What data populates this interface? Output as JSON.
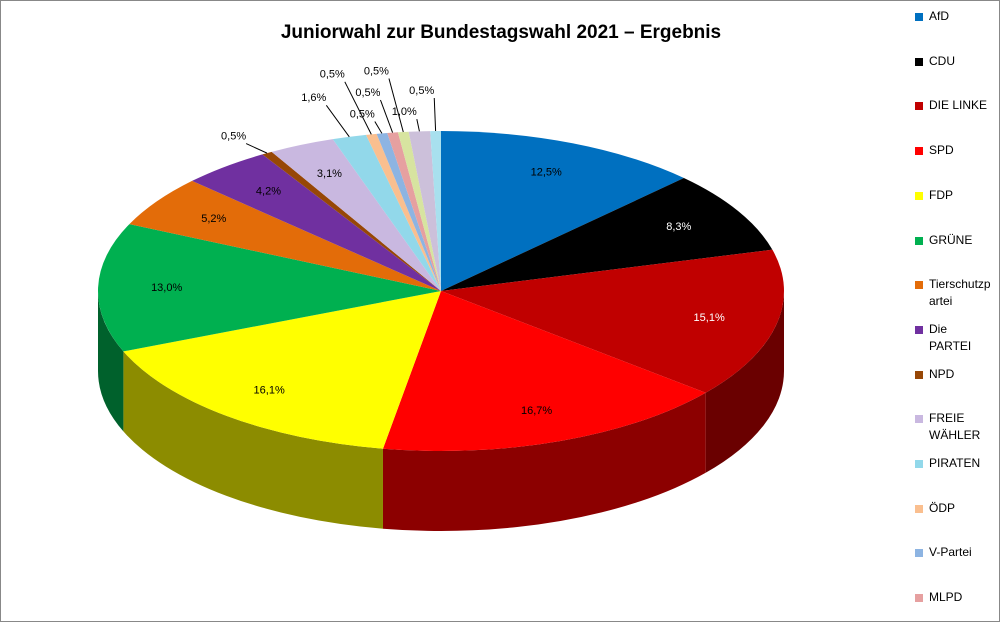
{
  "chart_data": {
    "type": "pie3d",
    "title": "Juniorwahl zur Bundestagswahl 2021 – Ergebnis",
    "categories": [
      "AfD",
      "CDU",
      "DIE LINKE",
      "SPD",
      "FDP",
      "GRÜNE",
      "Tierschutzpartei",
      "Die PARTEI",
      "NPD",
      "FREIE WÄHLER",
      "PIRATEN",
      "ÖDP",
      "V-Partei",
      "MLPD",
      null,
      null,
      null
    ],
    "values": [
      12.5,
      8.3,
      15.1,
      16.7,
      16.1,
      13.0,
      5.2,
      4.2,
      0.5,
      3.1,
      1.6,
      0.5,
      0.5,
      0.5,
      0.5,
      1.0,
      0.5
    ],
    "value_labels": [
      "12,5%",
      "8,3%",
      "15,1%",
      "16,7%",
      "16,1%",
      "13,0%",
      "5,2%",
      "4,2%",
      "0,5%",
      "3,1%",
      "1,6%",
      "0,5%",
      "0,5%",
      "0,5%",
      "0,5%",
      "1,0%",
      "0,5%"
    ],
    "colors": [
      "#0070c0",
      "#000000",
      "#c00000",
      "#ff0000",
      "#ffff00",
      "#00b050",
      "#e36c09",
      "#7030a0",
      "#974706",
      "#c9b8e0",
      "#92d8ea",
      "#fabf8f",
      "#8db4e2",
      "#e6a0a0",
      "#d7e4a0",
      "#ccc0da",
      "#a8e0ee"
    ],
    "legend": "right"
  }
}
